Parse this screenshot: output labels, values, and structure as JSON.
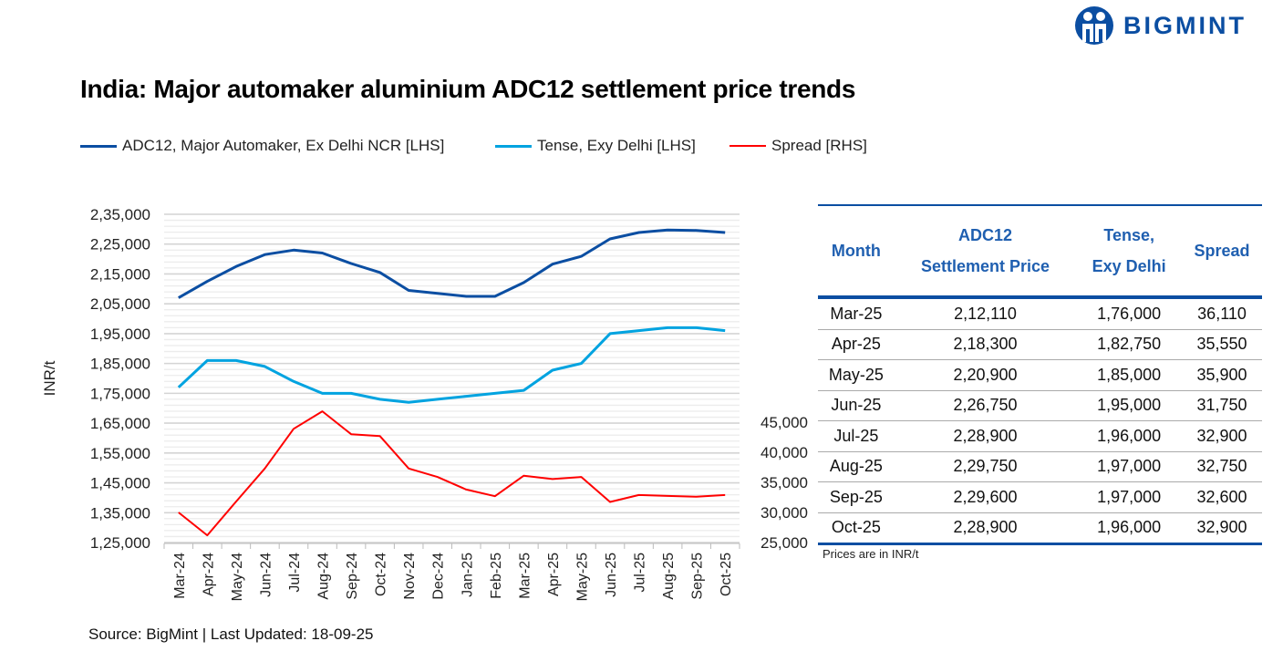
{
  "brand": {
    "name": "BIGMINT",
    "color": "#0B4EA2"
  },
  "title": "India: Major automaker aluminium ADC12 settlement price trends",
  "source": "Source: BigMint | Last Updated: 18-09-25",
  "chart_data": {
    "type": "line",
    "title": "India: Major automaker aluminium ADC12 settlement price trends",
    "ylabel": "INR/t",
    "legend_position": "top",
    "grid": true,
    "categories": [
      "Mar-24",
      "Apr-24",
      "May-24",
      "Jun-24",
      "Jul-24",
      "Aug-24",
      "Sep-24",
      "Oct-24",
      "Nov-24",
      "Dec-24",
      "Jan-25",
      "Feb-25",
      "Mar-25",
      "Apr-25",
      "May-25",
      "Jun-25",
      "Jul-25",
      "Aug-25",
      "Sep-25",
      "Oct-25"
    ],
    "left_axis": {
      "ylim": [
        125000,
        235000
      ],
      "ticks": [
        "2,35,000",
        "2,25,000",
        "2,15,000",
        "2,05,000",
        "1,95,000",
        "1,85,000",
        "1,75,000",
        "1,65,000",
        "1,55,000",
        "1,45,000",
        "1,35,000",
        "1,25,000"
      ]
    },
    "right_axis": {
      "ylim": [
        25000,
        45000
      ],
      "ticks": [
        "45,000",
        "40,000",
        "35,000",
        "30,000",
        "25,000"
      ]
    },
    "series": [
      {
        "name": "ADC12, Major Automaker, Ex Delhi NCR [LHS]",
        "axis": "left",
        "color": "#0B4EA2",
        "values": [
          207000,
          212500,
          217500,
          221500,
          223000,
          222000,
          218500,
          215500,
          209500,
          208500,
          207500,
          207500,
          212110,
          218300,
          220900,
          226750,
          228900,
          229750,
          229600,
          228900
        ]
      },
      {
        "name": "Tense, Exy Delhi [LHS]",
        "axis": "left",
        "color": "#00A3E0",
        "values": [
          177000,
          186000,
          186000,
          184000,
          179000,
          175000,
          175000,
          173000,
          172000,
          173000,
          174000,
          175000,
          176000,
          182750,
          185000,
          195000,
          196000,
          197000,
          197000,
          196000
        ]
      },
      {
        "name": "Spread [RHS]",
        "axis": "right",
        "color": "#FF0000",
        "values": [
          30000,
          26200,
          31800,
          37300,
          43900,
          46800,
          43000,
          42700,
          37300,
          35900,
          33800,
          32700,
          36110,
          35550,
          35900,
          31750,
          32900,
          32750,
          32600,
          32900
        ]
      }
    ]
  },
  "table": {
    "headers": [
      [
        "Month"
      ],
      [
        "ADC12",
        "Settlement Price"
      ],
      [
        "Tense,",
        "Exy Delhi"
      ],
      [
        "Spread"
      ]
    ],
    "rows": [
      [
        "Mar-25",
        "2,12,110",
        "1,76,000",
        "36,110"
      ],
      [
        "Apr-25",
        "2,18,300",
        "1,82,750",
        "35,550"
      ],
      [
        "May-25",
        "2,20,900",
        "1,85,000",
        "35,900"
      ],
      [
        "Jun-25",
        "2,26,750",
        "1,95,000",
        "31,750"
      ],
      [
        "Jul-25",
        "2,28,900",
        "1,96,000",
        "32,900"
      ],
      [
        "Aug-25",
        "2,29,750",
        "1,97,000",
        "32,750"
      ],
      [
        "Sep-25",
        "2,29,600",
        "1,97,000",
        "32,600"
      ],
      [
        "Oct-25",
        "2,28,900",
        "1,96,000",
        "32,900"
      ]
    ],
    "note": "Prices are in INR/t"
  }
}
